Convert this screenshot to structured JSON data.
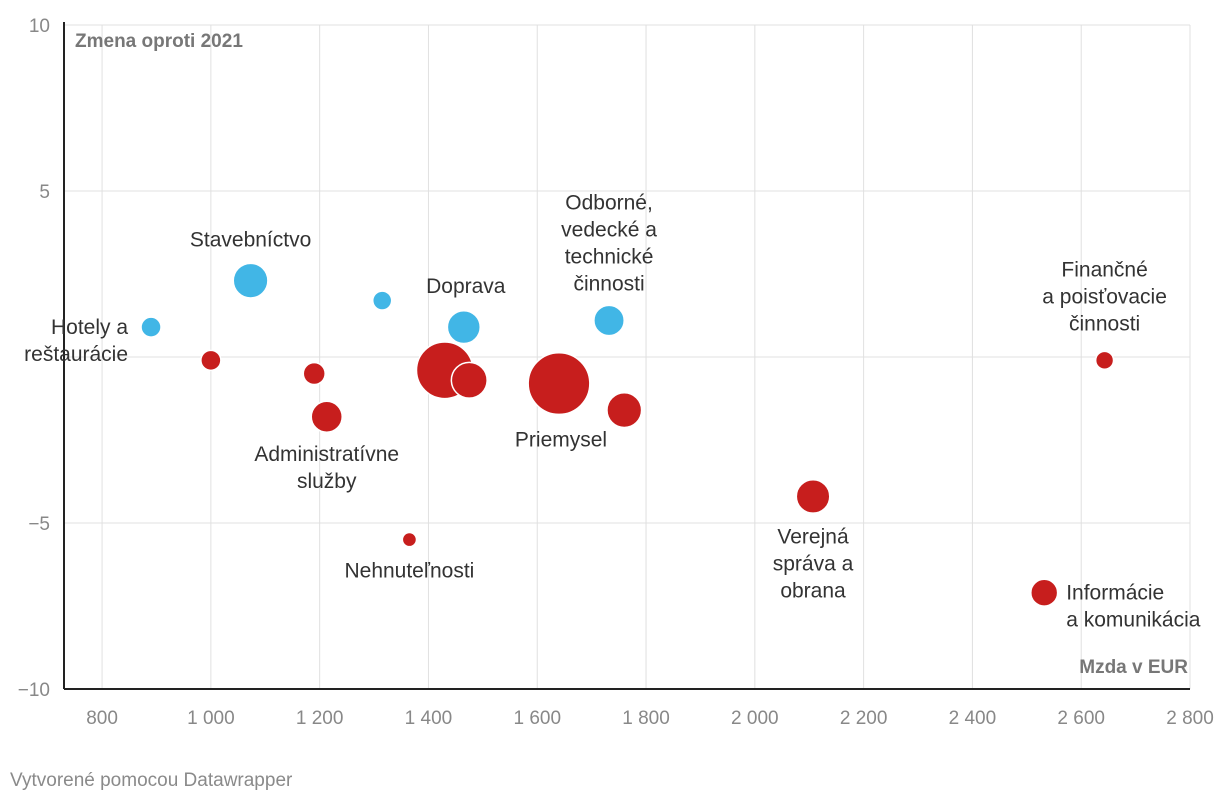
{
  "chart_data": {
    "type": "scatter",
    "title": "",
    "ylabel": "Zmena oproti 2021",
    "xlabel": "Mzda v EUR",
    "xlim": [
      730,
      2800
    ],
    "ylim": [
      -10,
      10
    ],
    "x_ticks": [
      {
        "value": 800,
        "label": "800"
      },
      {
        "value": 1000,
        "label": "1 000"
      },
      {
        "value": 1200,
        "label": "1 200"
      },
      {
        "value": 1400,
        "label": "1 400"
      },
      {
        "value": 1600,
        "label": "1 600"
      },
      {
        "value": 1800,
        "label": "1 800"
      },
      {
        "value": 2000,
        "label": "2 000"
      },
      {
        "value": 2200,
        "label": "2 200"
      },
      {
        "value": 2400,
        "label": "2 400"
      },
      {
        "value": 2600,
        "label": "2 600"
      },
      {
        "value": 2800,
        "label": "2 800"
      }
    ],
    "y_ticks": [
      {
        "value": 10,
        "label": "10"
      },
      {
        "value": 5,
        "label": "5"
      },
      {
        "value": -5,
        "label": "−5"
      },
      {
        "value": -10,
        "label": "−10"
      }
    ],
    "grid": true,
    "colors": {
      "positive": "#41b6e6",
      "negative": "#c71e1d",
      "axis": "#222222",
      "grid": "#e0e0e0",
      "tick_text": "#888888",
      "label_text": "#333333"
    },
    "points": [
      {
        "x": 890,
        "y": 0.9,
        "size": 1.0,
        "color": "positive"
      },
      {
        "x": 1000,
        "y": -0.1,
        "size": 1.0,
        "color": "negative"
      },
      {
        "x": 1073,
        "y": 2.3,
        "size": 3.0,
        "color": "positive"
      },
      {
        "x": 1190,
        "y": -0.5,
        "size": 1.2,
        "color": "negative"
      },
      {
        "x": 1213,
        "y": -1.8,
        "size": 2.4,
        "color": "negative"
      },
      {
        "x": 1315,
        "y": 1.7,
        "size": 0.9,
        "color": "positive"
      },
      {
        "x": 1365,
        "y": -5.5,
        "size": 0.5,
        "color": "negative"
      },
      {
        "x": 1430,
        "y": -0.4,
        "size": 8.0,
        "color": "negative"
      },
      {
        "x": 1465,
        "y": 0.9,
        "size": 2.7,
        "color": "positive"
      },
      {
        "x": 1475,
        "y": -0.7,
        "size": 3.2,
        "color": "negative"
      },
      {
        "x": 1640,
        "y": -0.8,
        "size": 9.5,
        "color": "negative"
      },
      {
        "x": 1732,
        "y": 1.1,
        "size": 2.3,
        "color": "positive"
      },
      {
        "x": 1760,
        "y": -1.6,
        "size": 3.0,
        "color": "negative"
      },
      {
        "x": 2107,
        "y": -4.2,
        "size": 2.8,
        "color": "negative"
      },
      {
        "x": 2532,
        "y": -7.1,
        "size": 1.8,
        "color": "negative"
      },
      {
        "x": 2643,
        "y": -0.1,
        "size": 0.8,
        "color": "negative"
      }
    ],
    "annotations": [
      {
        "lines": [
          "Hotely a",
          "reštaurácie"
        ],
        "x": 890,
        "y": 0.9,
        "align": "right"
      },
      {
        "lines": [
          "Stavebníctvo"
        ],
        "x": 1073,
        "y": 2.3,
        "align": "above"
      },
      {
        "lines": [
          "Administratívne",
          "služby"
        ],
        "x": 1213,
        "y": -1.8,
        "align": "below"
      },
      {
        "lines": [
          "Nehnuteľnosti"
        ],
        "x": 1365,
        "y": -5.5,
        "align": "below"
      },
      {
        "lines": [
          "Doprava"
        ],
        "x": 1465,
        "y": 0.9,
        "align": "above"
      },
      {
        "lines": [
          "Odborné,",
          "vedecké a",
          "technické",
          "činnosti"
        ],
        "x": 1732,
        "y": 1.1,
        "align": "above"
      },
      {
        "lines": [
          "Priemysel"
        ],
        "x": 1640,
        "y": -0.8,
        "align": "below"
      },
      {
        "lines": [
          "Verejná",
          "správa a",
          "obrana"
        ],
        "x": 2107,
        "y": -4.2,
        "align": "below"
      },
      {
        "lines": [
          "Informácie",
          "a komunikácia"
        ],
        "x": 2532,
        "y": -7.1,
        "align": "right-of"
      },
      {
        "lines": [
          "Finančné",
          "a poisťovacie",
          "činnosti"
        ],
        "x": 2643,
        "y": -0.1,
        "align": "above"
      }
    ]
  },
  "footer": {
    "text": "Vytvorené pomocou Datawrapper"
  }
}
